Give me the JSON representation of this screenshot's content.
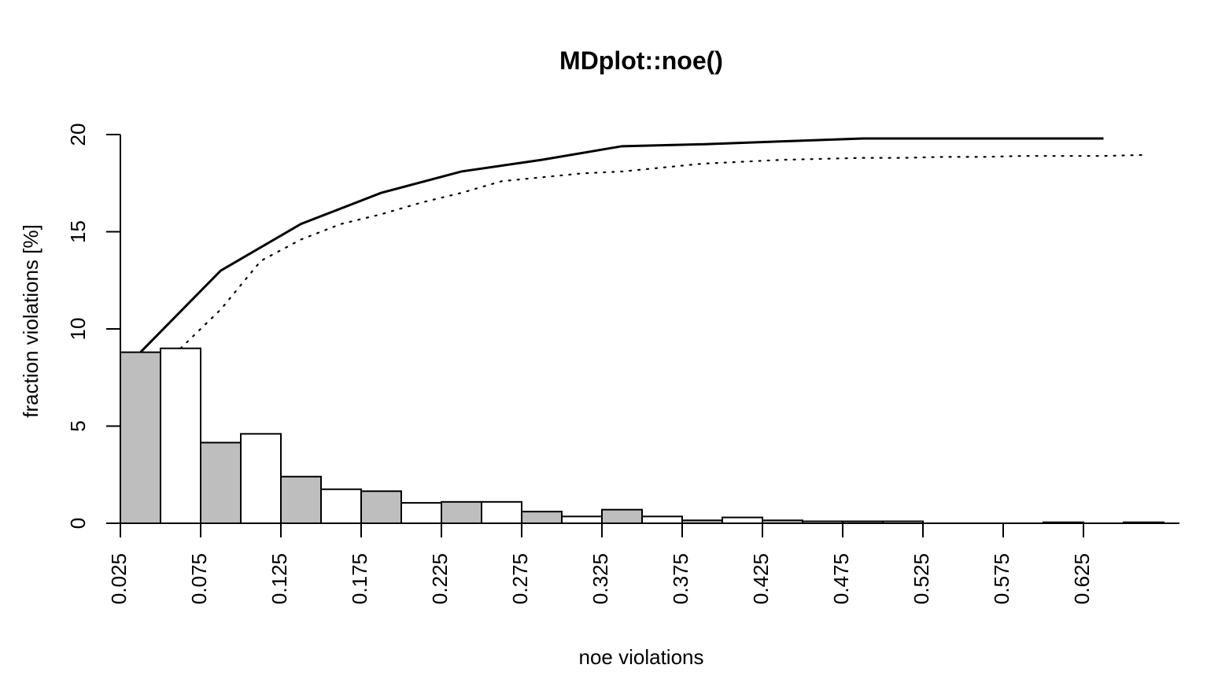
{
  "chart_data": {
    "type": "bar",
    "title": "MDplot::noe()",
    "xlabel": "noe violations",
    "ylabel": "fraction violations [%]",
    "xlim": [
      0.025,
      0.675
    ],
    "ylim": [
      0,
      20
    ],
    "x_ticks": [
      "0.025",
      "0.075",
      "0.125",
      "0.175",
      "0.225",
      "0.275",
      "0.325",
      "0.375",
      "0.425",
      "0.475",
      "0.525",
      "0.575",
      "0.625"
    ],
    "y_ticks": [
      "0",
      "5",
      "10",
      "15",
      "20"
    ],
    "bin_width": 0.025,
    "bin_starts": [
      0.025,
      0.05,
      0.075,
      0.1,
      0.125,
      0.15,
      0.175,
      0.2,
      0.225,
      0.25,
      0.275,
      0.3,
      0.325,
      0.35,
      0.375,
      0.4,
      0.425,
      0.45,
      0.475,
      0.5,
      0.525,
      0.55,
      0.575,
      0.6,
      0.625,
      0.65
    ],
    "series": [
      {
        "values": [
          8.8,
          9.0,
          4.15,
          4.6,
          2.4,
          1.75,
          1.65,
          1.05,
          1.1,
          1.1,
          0.6,
          0.35,
          0.7,
          0.35,
          0.15,
          0.3,
          0.15,
          0.1,
          0.1,
          0.1,
          0.0,
          0.0,
          0.0,
          0.05,
          0.0,
          0.05
        ],
        "fills": [
          "#bebebe",
          "#ffffff",
          "#bebebe",
          "#ffffff",
          "#bebebe",
          "#ffffff",
          "#bebebe",
          "#ffffff",
          "#bebebe",
          "#ffffff",
          "#bebebe",
          "#ffffff",
          "#bebebe",
          "#ffffff",
          "#bebebe",
          "#ffffff",
          "#bebebe",
          "#ffffff",
          "#bebebe",
          "#ffffff",
          "#bebebe",
          "#ffffff",
          "#bebebe",
          "#ffffff",
          "#bebebe",
          "#ffffff"
        ]
      }
    ],
    "lines": [
      {
        "style": "solid",
        "x": [
          0.0375,
          0.0875,
          0.1375,
          0.1875,
          0.2375,
          0.2875,
          0.3375,
          0.3875,
          0.4375,
          0.4875,
          0.5375,
          0.5875,
          0.6375
        ],
        "y": [
          8.8,
          13.0,
          15.4,
          17.0,
          18.1,
          18.7,
          19.4,
          19.5,
          19.65,
          19.8,
          19.8,
          19.8,
          19.8
        ]
      },
      {
        "style": "dotted",
        "x": [
          0.0625,
          0.0875,
          0.1125,
          0.1375,
          0.1625,
          0.1875,
          0.2125,
          0.2375,
          0.2625,
          0.2875,
          0.3125,
          0.3375,
          0.3625,
          0.3875,
          0.4125,
          0.4375,
          0.4625,
          0.4875,
          0.5125,
          0.5375,
          0.5625,
          0.5875,
          0.6125,
          0.6375,
          0.6625
        ],
        "y": [
          9.0,
          11.0,
          13.5,
          14.6,
          15.4,
          15.9,
          16.5,
          17.0,
          17.6,
          17.8,
          18.0,
          18.1,
          18.3,
          18.5,
          18.6,
          18.7,
          18.75,
          18.8,
          18.8,
          18.85,
          18.85,
          18.9,
          18.9,
          18.9,
          18.95
        ]
      }
    ],
    "grid": false,
    "legend": "none"
  }
}
